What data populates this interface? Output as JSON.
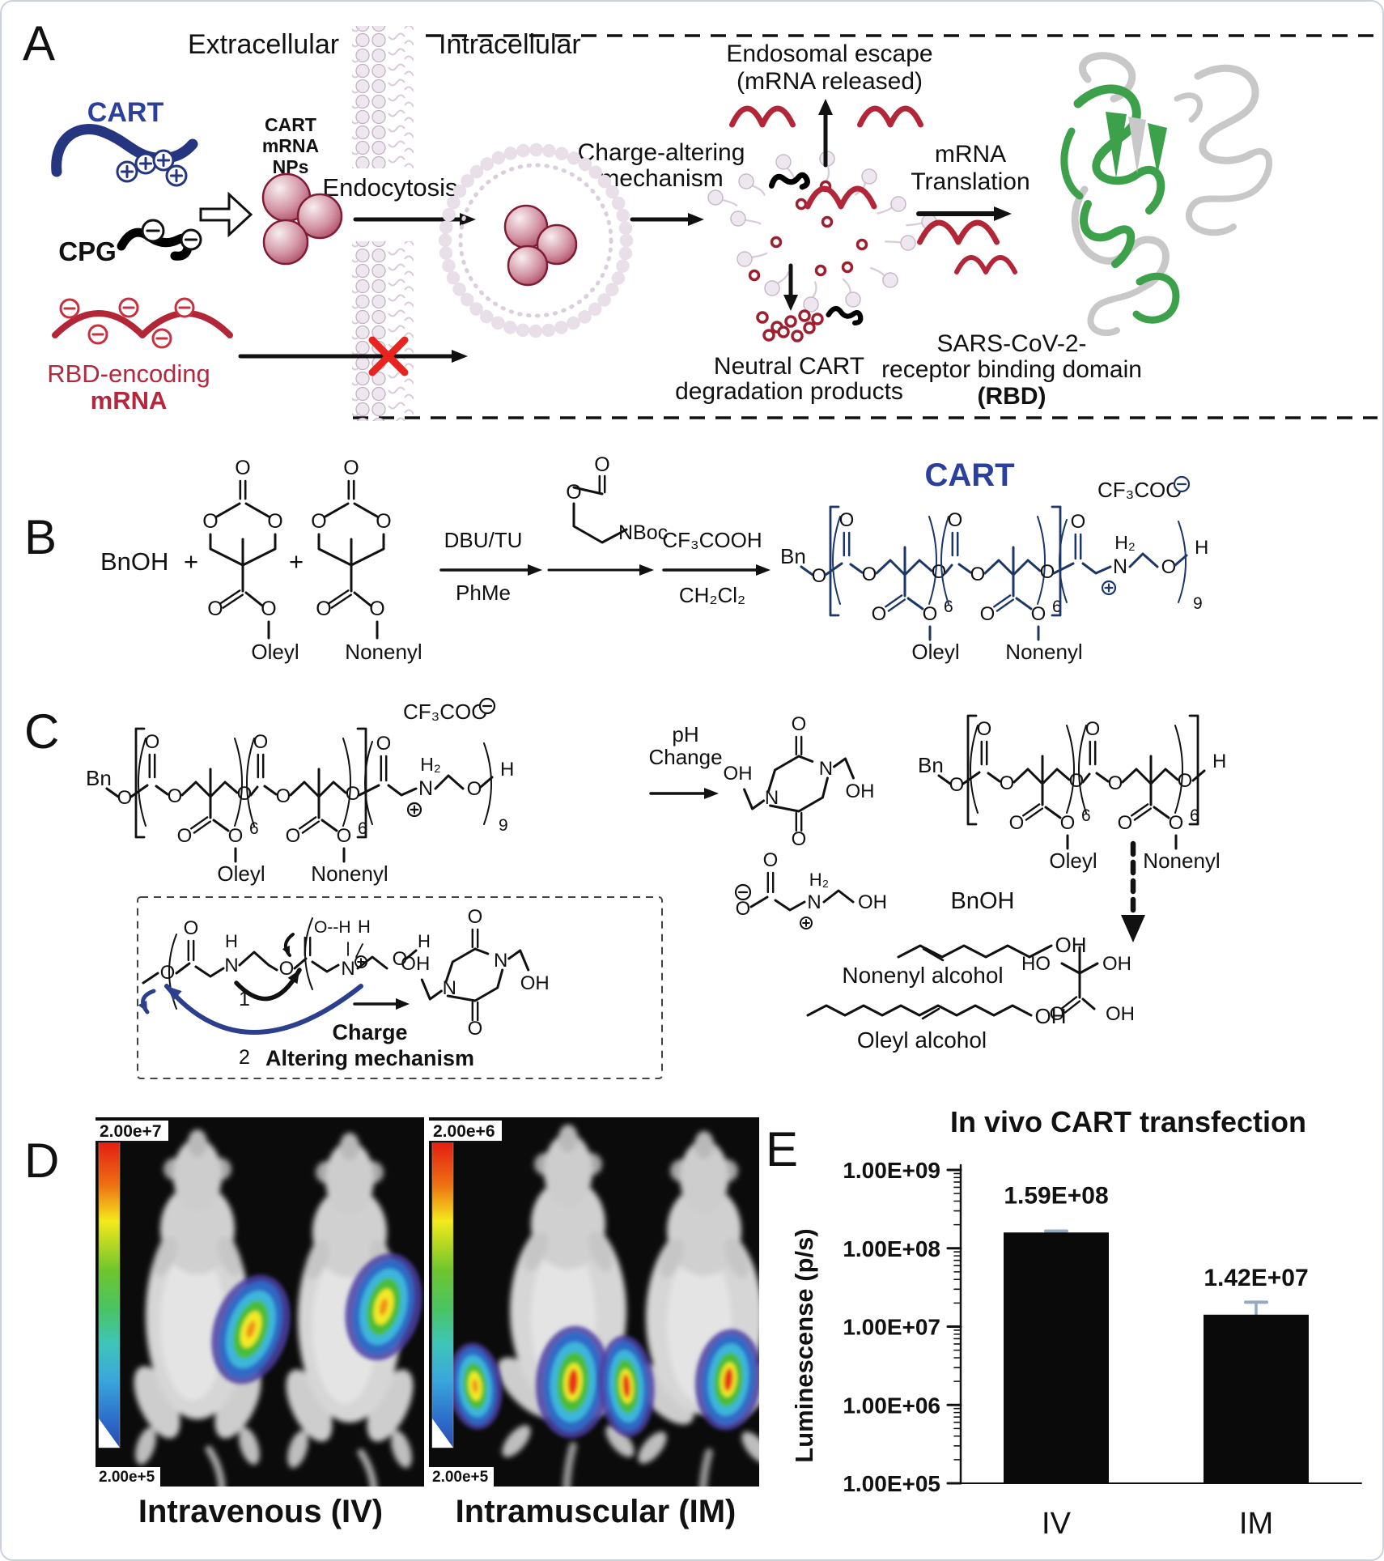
{
  "panel_labels": {
    "a": "A",
    "b": "B",
    "c": "C",
    "d": "D",
    "e": "E"
  },
  "panelA": {
    "extracellular": "Extracellular",
    "intracellular": "Intracellular",
    "cart": "CART",
    "cpg": "CPG",
    "rbd_line1": "RBD-encoding",
    "rbd_line2": "mRNA",
    "nps_line1": "CART",
    "nps_line2": "mRNA",
    "nps_line3": "NPs",
    "endocytosis": "Endocytosis",
    "charge_line1": "Charge-altering",
    "charge_line2": "mechanism",
    "escape_line1": "Endosomal escape",
    "escape_line2": "(mRNA released)",
    "translation_line1": "mRNA",
    "translation_line2": "Translation",
    "neutral_line1": "Neutral CART",
    "neutral_line2": "degradation products",
    "sars_line1": "SARS-CoV-2-",
    "sars_line2": "receptor binding domain",
    "sars_line3": "(RBD)"
  },
  "panelB": {
    "bnoh": "BnOH",
    "plus": "+",
    "oleyl": "Oleyl",
    "nonenyl": "Nonenyl",
    "reagent1_top": "DBU/TU",
    "reagent1_bottom": "PhMe",
    "nboc": "NBoc",
    "reagent2_top": "CF₃COOH",
    "reagent2_bottom": "CH₂Cl₂",
    "cart_title": "CART",
    "bn": "Bn",
    "h": "H",
    "h2": "H₂",
    "n": "N",
    "counterion": "CF₃COO",
    "sub6": "6",
    "sub9": "9"
  },
  "panelC": {
    "bn": "Bn",
    "h": "H",
    "h2": "H₂",
    "n": "N",
    "counterion": "CF₃COO",
    "sub6": "6",
    "sub9": "9",
    "oleyl": "Oleyl",
    "nonenyl": "Nonenyl",
    "ph_line1": "pH",
    "ph_line2": "Change",
    "mech_line1": "Charge",
    "mech_line2": "Altering mechanism",
    "step1": "1",
    "step2": "2",
    "bnoh": "BnOH",
    "nonenyl_alcohol": "Nonenyl alcohol",
    "oleyl_alcohol": "Oleyl alcohol"
  },
  "panelD": {
    "iv_caption": "Intravenous (IV)",
    "im_caption": "Intramuscular (IM)",
    "iv_scale_top": "2.00e+7",
    "iv_scale_bottom": "2.00e+5",
    "im_scale_top": "2.00e+6",
    "im_scale_bottom": "2.00e+5"
  },
  "chart_data": {
    "type": "bar",
    "title": "In vivo CART transfection",
    "ylabel": "Luminescense (p/s)",
    "categories": [
      "IV",
      "IM"
    ],
    "values": [
      159000000,
      14200000
    ],
    "value_labels": [
      "1.59E+08",
      "1.42E+07"
    ],
    "error_plus": [
      7000000,
      6300000
    ],
    "yticks": [
      {
        "label": "1.00E+09",
        "value": 1000000000
      },
      {
        "label": "1.00E+08",
        "value": 100000000
      },
      {
        "label": "1.00E+07",
        "value": 10000000
      },
      {
        "label": "1.00E+06",
        "value": 1000000
      },
      {
        "label": "1.00E+05",
        "value": 100000
      }
    ],
    "ylim": [
      100000,
      1000000000
    ],
    "yscale": "log",
    "grid": false,
    "legend": false,
    "bar_color": "#0a0a0a",
    "error_color": "#93a9c4"
  },
  "atoms": {
    "O": "O",
    "N": "N",
    "H": "H",
    "OH": "OH",
    "HO": "HO",
    "H2": "H₂",
    "hbond": "O--H"
  },
  "colors": {
    "cart_blue": "#26357f",
    "structure_blue": "#1c3668",
    "mrna_red": "#b22638",
    "np_maroon": "#9c2b47",
    "membrane_fill": "#efe7ef",
    "membrane_stroke": "#c2b1c2",
    "protein_green": "#3da14c",
    "protein_gray": "#c8c8c8",
    "x_red": "#e8241f",
    "arrow_blue": "#2b3f8c"
  }
}
